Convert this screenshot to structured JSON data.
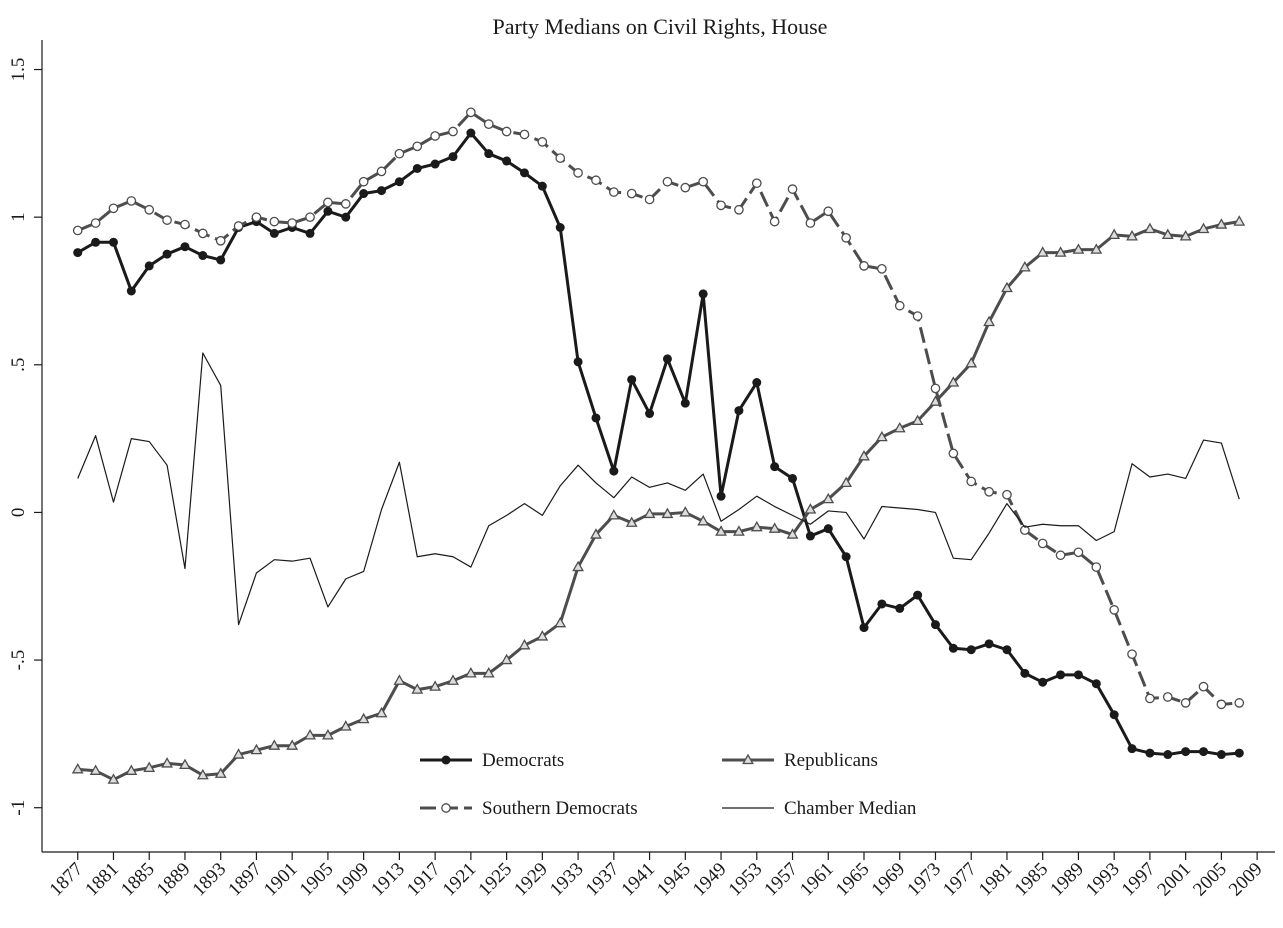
{
  "chart_data": {
    "type": "line",
    "title": "Party Medians on Civil Rights, House",
    "x": [
      1877,
      1879,
      1881,
      1883,
      1885,
      1887,
      1889,
      1891,
      1893,
      1895,
      1897,
      1899,
      1901,
      1903,
      1905,
      1907,
      1909,
      1911,
      1913,
      1915,
      1917,
      1919,
      1921,
      1923,
      1925,
      1927,
      1929,
      1931,
      1933,
      1935,
      1937,
      1939,
      1941,
      1943,
      1945,
      1947,
      1949,
      1951,
      1953,
      1955,
      1957,
      1959,
      1961,
      1963,
      1965,
      1967,
      1969,
      1971,
      1973,
      1975,
      1977,
      1979,
      1981,
      1983,
      1985,
      1987,
      1989,
      1991,
      1993,
      1995,
      1997,
      1999,
      2001,
      2003,
      2005,
      2007
    ],
    "series": [
      {
        "name": "Democrats",
        "color": "#1a1a1a",
        "marker": "filled-circle",
        "dash": false,
        "width": 3,
        "values": [
          0.88,
          0.915,
          0.915,
          0.75,
          0.835,
          0.875,
          0.9,
          0.87,
          0.855,
          0.965,
          0.985,
          0.945,
          0.965,
          0.945,
          1.02,
          1.0,
          1.08,
          1.09,
          1.12,
          1.165,
          1.18,
          1.205,
          1.285,
          1.215,
          1.19,
          1.15,
          1.105,
          0.965,
          0.51,
          0.32,
          0.14,
          0.45,
          0.335,
          0.52,
          0.37,
          0.74,
          0.055,
          0.345,
          0.44,
          0.155,
          0.115,
          -0.08,
          -0.055,
          -0.15,
          -0.39,
          -0.31,
          -0.325,
          -0.28,
          -0.38,
          -0.46,
          -0.465,
          -0.445,
          -0.465,
          -0.545,
          -0.575,
          -0.55,
          -0.55,
          -0.58,
          -0.685,
          -0.8,
          -0.815,
          -0.82,
          -0.81,
          -0.81,
          -0.82,
          -0.815
        ]
      },
      {
        "name": "Republicans",
        "color": "#4d4d4d",
        "marker": "open-triangle",
        "dash": false,
        "width": 3,
        "values": [
          -0.87,
          -0.875,
          -0.905,
          -0.875,
          -0.865,
          -0.85,
          -0.855,
          -0.89,
          -0.885,
          -0.82,
          -0.805,
          -0.79,
          -0.79,
          -0.755,
          -0.755,
          -0.725,
          -0.7,
          -0.68,
          -0.57,
          -0.6,
          -0.59,
          -0.57,
          -0.545,
          -0.545,
          -0.5,
          -0.45,
          -0.42,
          -0.375,
          -0.185,
          -0.075,
          -0.01,
          -0.035,
          -0.005,
          -0.005,
          0.0,
          -0.03,
          -0.065,
          -0.065,
          -0.05,
          -0.055,
          -0.075,
          0.01,
          0.045,
          0.1,
          0.19,
          0.255,
          0.285,
          0.31,
          0.375,
          0.44,
          0.505,
          0.645,
          0.76,
          0.83,
          0.88,
          0.88,
          0.89,
          0.89,
          0.94,
          0.935,
          0.96,
          0.94,
          0.935,
          0.96,
          0.975,
          0.985
        ]
      },
      {
        "name": "Southern Democrats",
        "color": "#4d4d4d",
        "marker": "open-circle",
        "dash": true,
        "width": 3,
        "values": [
          0.955,
          0.98,
          1.03,
          1.055,
          1.025,
          0.99,
          0.975,
          0.945,
          0.92,
          0.97,
          1.0,
          0.985,
          0.98,
          1.0,
          1.05,
          1.045,
          1.12,
          1.155,
          1.215,
          1.24,
          1.275,
          1.29,
          1.355,
          1.315,
          1.29,
          1.28,
          1.255,
          1.2,
          1.15,
          1.125,
          1.085,
          1.08,
          1.06,
          1.12,
          1.1,
          1.12,
          1.04,
          1.025,
          1.115,
          0.985,
          1.095,
          0.98,
          1.02,
          0.93,
          0.835,
          0.825,
          0.7,
          0.665,
          0.42,
          0.2,
          0.105,
          0.07,
          0.06,
          -0.06,
          -0.105,
          -0.145,
          -0.135,
          -0.185,
          -0.33,
          -0.48,
          -0.63,
          -0.625,
          -0.645,
          -0.59,
          -0.65,
          -0.645
        ]
      },
      {
        "name": "Chamber Median",
        "color": "#1a1a1a",
        "marker": "none",
        "dash": false,
        "width": 1.2,
        "values": [
          0.115,
          0.26,
          0.035,
          0.25,
          0.24,
          0.16,
          -0.19,
          0.54,
          0.43,
          -0.38,
          -0.205,
          -0.16,
          -0.165,
          -0.155,
          -0.32,
          -0.225,
          -0.2,
          0.01,
          0.17,
          -0.15,
          -0.14,
          -0.15,
          -0.185,
          -0.045,
          -0.01,
          0.03,
          -0.01,
          0.09,
          0.16,
          0.1,
          0.05,
          0.12,
          0.085,
          0.1,
          0.075,
          0.13,
          -0.03,
          0.01,
          0.055,
          0.02,
          -0.01,
          -0.04,
          0.005,
          0.0,
          -0.09,
          0.02,
          0.015,
          0.01,
          0.0,
          -0.155,
          -0.16,
          -0.07,
          0.03,
          -0.05,
          -0.04,
          -0.045,
          -0.045,
          -0.095,
          -0.065,
          0.165,
          0.12,
          0.13,
          0.115,
          0.245,
          0.235,
          0.045
        ]
      }
    ],
    "xlim": [
      1873,
      2011
    ],
    "xticks": [
      1877,
      1881,
      1885,
      1889,
      1893,
      1897,
      1901,
      1905,
      1909,
      1913,
      1917,
      1921,
      1925,
      1929,
      1933,
      1937,
      1941,
      1945,
      1949,
      1953,
      1957,
      1961,
      1965,
      1969,
      1973,
      1977,
      1981,
      1985,
      1989,
      1993,
      1997,
      2001,
      2005,
      2009
    ],
    "ylim": [
      -1.15,
      1.6
    ],
    "yticks": [
      -1,
      {
        "value": -0.5,
        "label": "-.5"
      },
      0,
      {
        "value": 0.5,
        "label": ".5"
      },
      1,
      1.5
    ],
    "grid": false,
    "legend": "lower center"
  }
}
